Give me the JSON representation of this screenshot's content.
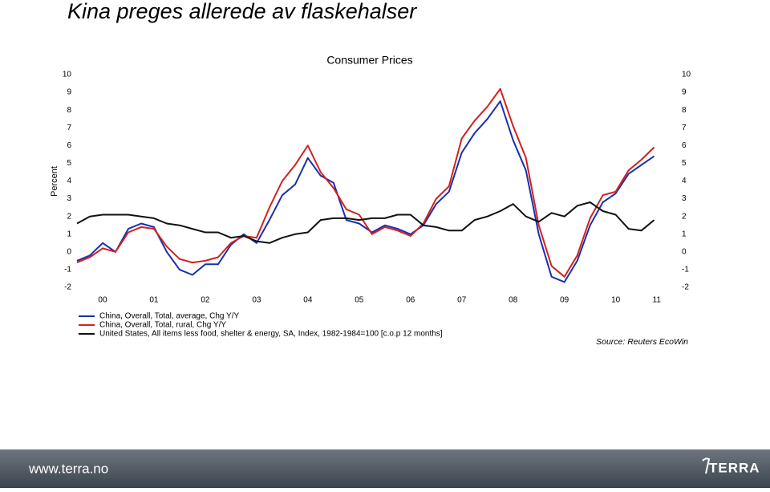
{
  "slide": {
    "title": "Kina preges allerede av flaskehalser",
    "footer": {
      "url": "www.terra.no",
      "logo": "TERRA"
    }
  },
  "chart_data": {
    "type": "line",
    "title": "Consumer Prices",
    "ylabel": "Percent",
    "source": "Source: Reuters EcoWin",
    "x": [
      2000.0,
      2000.25,
      2000.5,
      2000.75,
      2001.0,
      2001.25,
      2001.5,
      2001.75,
      2002.0,
      2002.25,
      2002.5,
      2002.75,
      2003.0,
      2003.25,
      2003.5,
      2003.75,
      2004.0,
      2004.25,
      2004.5,
      2004.75,
      2005.0,
      2005.25,
      2005.5,
      2005.75,
      2006.0,
      2006.25,
      2006.5,
      2006.75,
      2007.0,
      2007.25,
      2007.5,
      2007.75,
      2008.0,
      2008.25,
      2008.5,
      2008.75,
      2009.0,
      2009.25,
      2009.5,
      2009.75,
      2010.0,
      2010.25,
      2010.5,
      2010.75,
      2011.0,
      2011.25
    ],
    "series": [
      {
        "name": "China, Overall, Total, average, Chg Y/Y",
        "color": "#1a2fb0",
        "values": [
          -0.5,
          -0.2,
          0.5,
          0.0,
          1.3,
          1.6,
          1.4,
          0.0,
          -1.0,
          -1.3,
          -0.7,
          -0.7,
          0.4,
          1.0,
          0.5,
          1.8,
          3.2,
          3.8,
          5.3,
          4.3,
          3.9,
          1.8,
          1.6,
          1.1,
          1.5,
          1.3,
          1.0,
          1.5,
          2.7,
          3.4,
          5.6,
          6.7,
          7.5,
          8.5,
          6.3,
          4.6,
          1.0,
          -1.4,
          -1.7,
          -0.5,
          1.5,
          2.8,
          3.3,
          4.4,
          4.9,
          5.4
        ]
      },
      {
        "name": "China, Overall, Total, rural, Chg Y/Y",
        "color": "#d42020",
        "values": [
          -0.6,
          -0.3,
          0.2,
          0.0,
          1.1,
          1.4,
          1.3,
          0.3,
          -0.4,
          -0.6,
          -0.5,
          -0.3,
          0.5,
          0.9,
          0.8,
          2.5,
          4.0,
          4.9,
          6.0,
          4.5,
          3.6,
          2.4,
          2.1,
          1.0,
          1.4,
          1.2,
          0.9,
          1.6,
          3.0,
          3.7,
          6.4,
          7.4,
          8.2,
          9.2,
          7.1,
          5.3,
          1.5,
          -0.8,
          -1.4,
          -0.2,
          1.9,
          3.2,
          3.4,
          4.6,
          5.2,
          5.9
        ]
      },
      {
        "name": "United States, All items less food, shelter & energy, SA, Index, 1982-1984=100 [c.o.p 12 months]",
        "color": "#111111",
        "values": [
          1.6,
          2.0,
          2.1,
          2.1,
          2.1,
          2.0,
          1.9,
          1.6,
          1.5,
          1.3,
          1.1,
          1.1,
          0.8,
          0.9,
          0.6,
          0.5,
          0.8,
          1.0,
          1.1,
          1.8,
          1.9,
          1.9,
          1.8,
          1.9,
          1.9,
          2.1,
          2.1,
          1.5,
          1.4,
          1.2,
          1.2,
          1.8,
          2.0,
          2.3,
          2.7,
          2.0,
          1.7,
          2.2,
          2.0,
          2.6,
          2.8,
          2.3,
          2.1,
          1.3,
          1.2,
          1.8
        ]
      }
    ],
    "xlim": [
      2000.0,
      2011.6
    ],
    "xticks": [
      {
        "value": 2000.5,
        "label": "00"
      },
      {
        "value": 2001.5,
        "label": "01"
      },
      {
        "value": 2002.5,
        "label": "02"
      },
      {
        "value": 2003.5,
        "label": "03"
      },
      {
        "value": 2004.5,
        "label": "04"
      },
      {
        "value": 2005.5,
        "label": "05"
      },
      {
        "value": 2006.5,
        "label": "06"
      },
      {
        "value": 2007.5,
        "label": "07"
      },
      {
        "value": 2008.5,
        "label": "08"
      },
      {
        "value": 2009.5,
        "label": "09"
      },
      {
        "value": 2010.5,
        "label": "10"
      },
      {
        "value": 2011.3,
        "label": "11"
      }
    ],
    "ylim": [
      -2,
      10
    ],
    "yticks": [
      -2,
      -1,
      0,
      1,
      2,
      3,
      4,
      5,
      6,
      7,
      8,
      9,
      10
    ],
    "grid": false
  }
}
